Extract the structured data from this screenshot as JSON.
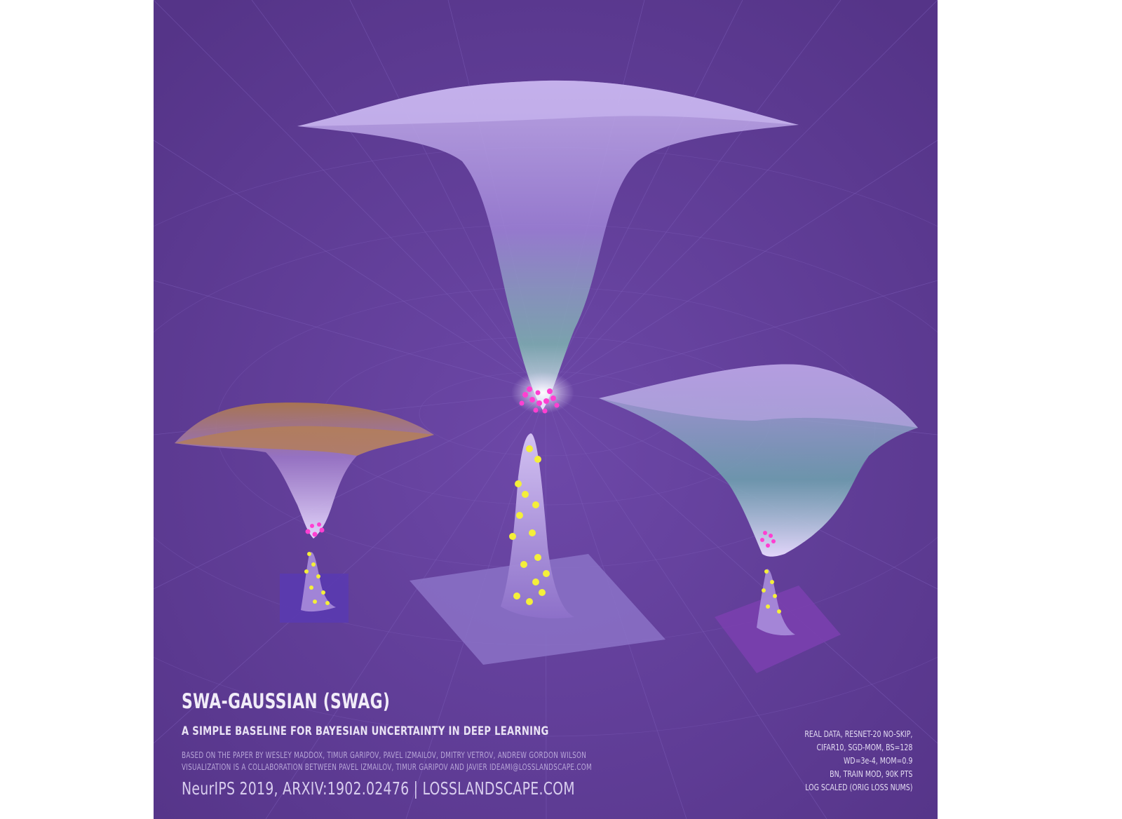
{
  "poster": {
    "title": "SWA-GAUSSIAN (SWAG)",
    "subtitle": "A SIMPLE BASELINE FOR BAYESIAN UNCERTAINTY IN DEEP LEARNING",
    "credit_paper": "BASED ON THE PAPER BY WESLEY MADDOX, TIMUR GARIPOV, PAVEL IZMAILOV, DMITRY VETROV, ANDREW GORDON WILSON",
    "credit_visualization": "VISUALIZATION IS A COLLABORATION BETWEEN PAVEL IZMAILOV, TIMUR GARIPOV AND JAVIER IDEAMI@LOSSLANDSCAPE.COM",
    "footer": "NeurIPS 2019, ARXIV:1902.02476  |  LOSSLANDSCAPE.COM",
    "specs": [
      "REAL DATA, RESNET-20 NO-SKIP,",
      "CIFAR10, SGD-MOM, BS=128",
      "WD=3e-4, MOM=0.9",
      "BN, TRAIN MOD, 90K PTS",
      "LOG SCALED (ORIG LOSS NUMS)"
    ]
  },
  "colors": {
    "background": "#5f3c96",
    "surface": "#a58ad6",
    "sample_points_top": "#ff3fd1",
    "sample_points_bottom": "#f4ef3a",
    "left_rim": "#b0703f"
  }
}
